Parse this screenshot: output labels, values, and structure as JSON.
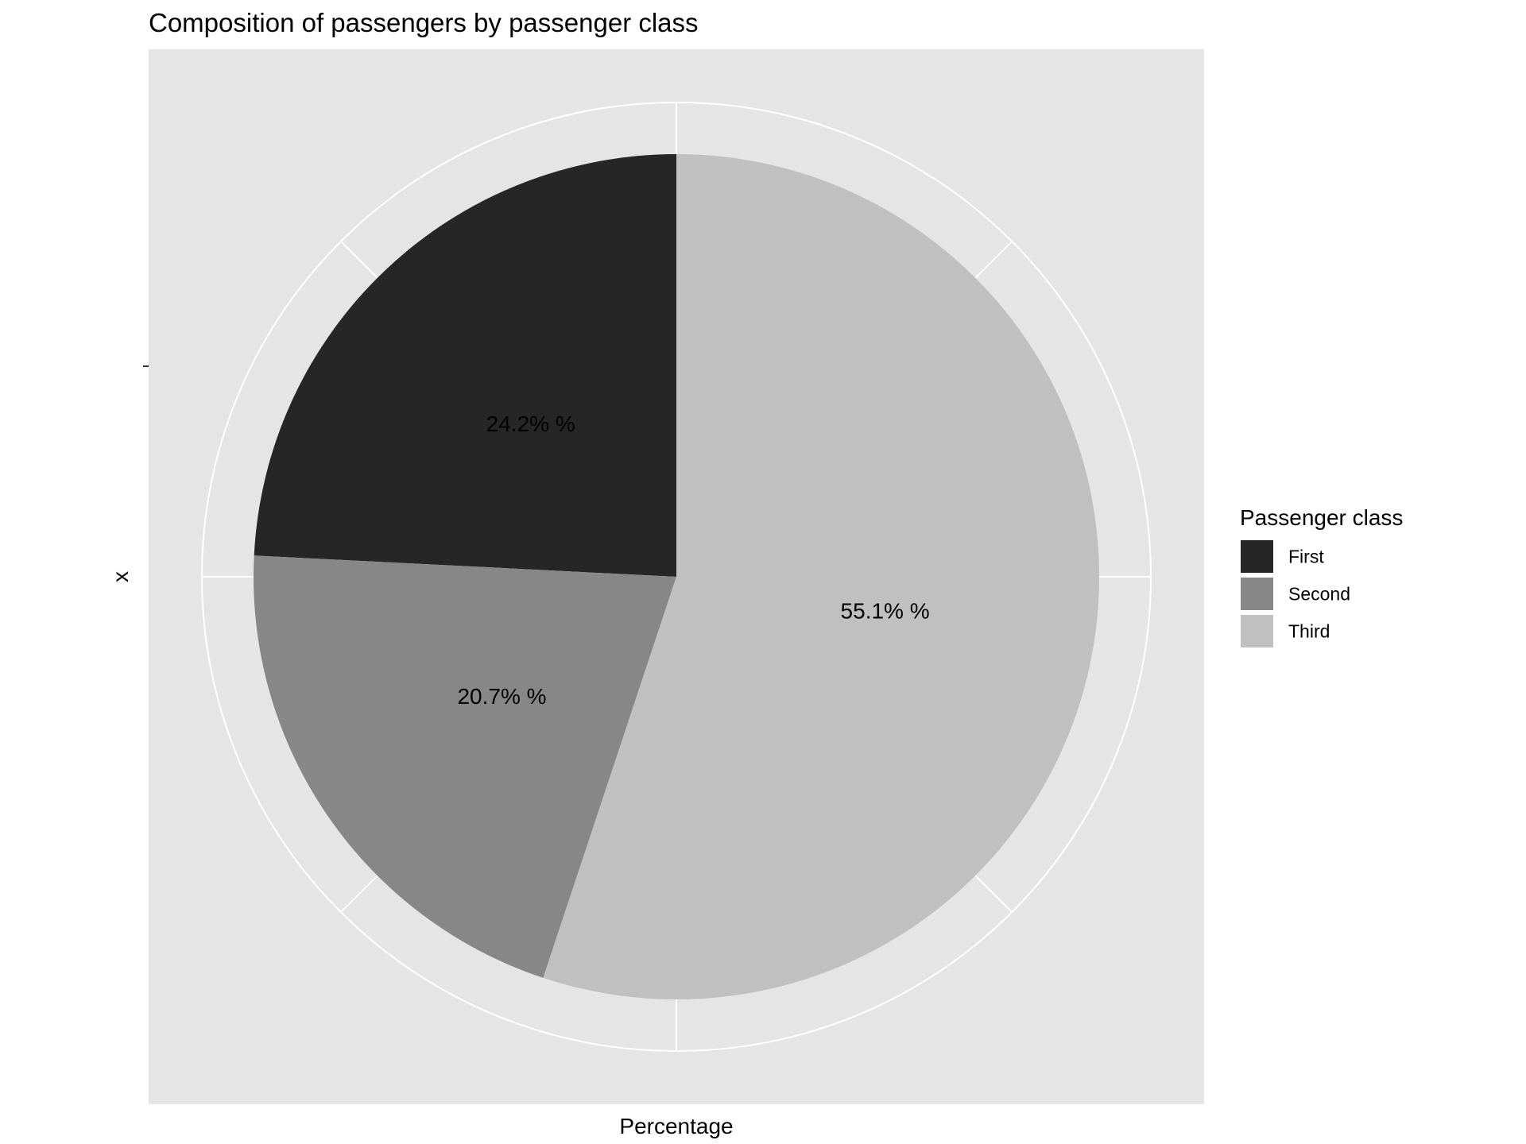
{
  "chart_data": {
    "type": "pie",
    "title": "Composition of passengers by passenger class",
    "xlabel": "Percentage",
    "ylabel": "x",
    "y_tick_labels": [
      ""
    ],
    "legend": {
      "title": "Passenger class",
      "placement": "right"
    },
    "categories": [
      "First",
      "Second",
      "Third"
    ],
    "values": [
      24.2,
      20.7,
      55.1
    ],
    "data_labels": [
      "24.2% %",
      "20.7% %",
      "55.1% %"
    ],
    "colors": [
      "#262626",
      "#878787",
      "#c0c0c0"
    ],
    "panel_background": "#e5e5e5",
    "grid_color": "#ffffff",
    "grid": true,
    "start": "12 o'clock",
    "direction": "counterclockwise"
  }
}
